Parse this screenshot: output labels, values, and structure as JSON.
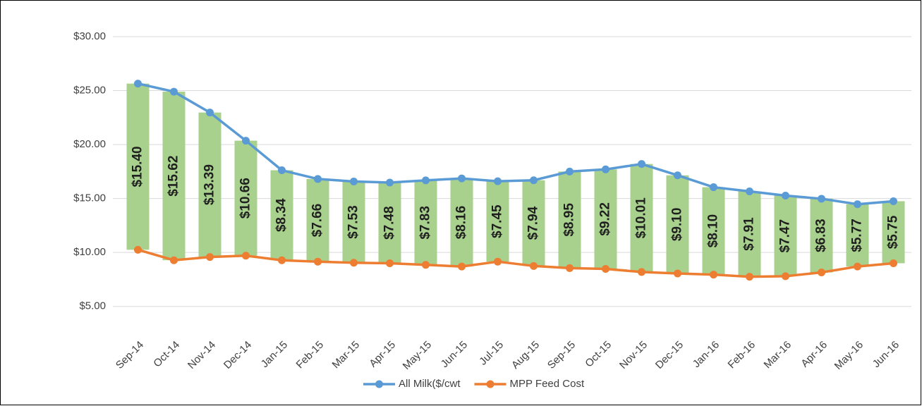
{
  "chart_data": {
    "type": "line",
    "categories": [
      "Sep-14",
      "Oct-14",
      "Nov-14",
      "Dec-14",
      "Jan-15",
      "Feb-15",
      "Mar-15",
      "Apr-15",
      "May-15",
      "Jun-15",
      "Jul-15",
      "Aug-15",
      "Sep-15",
      "Oct-15",
      "Nov-15",
      "Dec-15",
      "Jan-16",
      "Feb-16",
      "Mar-16",
      "Apr-16",
      "May-16",
      "Jun-16"
    ],
    "series": [
      {
        "name": "All Milk($/cwt",
        "color": "#5b9bd5",
        "values": [
          25.65,
          24.9,
          22.97,
          20.36,
          17.62,
          16.81,
          16.58,
          16.48,
          16.68,
          16.86,
          16.6,
          16.69,
          17.5,
          17.7,
          18.2,
          17.15,
          16.05,
          15.66,
          15.27,
          14.98,
          14.47,
          14.75
        ]
      },
      {
        "name": "MPP Feed Cost",
        "color": "#ed7d31",
        "values": [
          10.25,
          9.28,
          9.58,
          9.7,
          9.28,
          9.15,
          9.05,
          9.0,
          8.85,
          8.7,
          9.15,
          8.75,
          8.55,
          8.48,
          8.19,
          8.05,
          7.95,
          7.75,
          7.8,
          8.15,
          8.7,
          9.0
        ]
      }
    ],
    "margin": {
      "color": "#a9d18e",
      "values": [
        15.4,
        15.62,
        13.39,
        10.66,
        8.34,
        7.66,
        7.53,
        7.48,
        7.83,
        8.16,
        7.45,
        7.94,
        8.95,
        9.22,
        10.01,
        9.1,
        8.1,
        7.91,
        7.47,
        6.83,
        5.77,
        5.75
      ],
      "value_labels": [
        "$15.40",
        "$15.62",
        "$13.39",
        "$10.66",
        "$8.34",
        "$7.66",
        "$7.53",
        "$7.48",
        "$7.83",
        "$8.16",
        "$7.45",
        "$7.94",
        "$8.95",
        "$9.22",
        "$10.01",
        "$9.10",
        "$8.10",
        "$7.91",
        "$7.47",
        "$6.83",
        "$5.77",
        "$5.75"
      ]
    },
    "ylim": [
      2.5,
      30
    ],
    "yticks": [
      {
        "value": 5,
        "label": "$5.00"
      },
      {
        "value": 10,
        "label": "$10.00"
      },
      {
        "value": 15,
        "label": "$15.00"
      },
      {
        "value": 20,
        "label": "$20.00"
      },
      {
        "value": 25,
        "label": "$25.00"
      },
      {
        "value": 30,
        "label": "$30.00"
      }
    ],
    "grid": true,
    "legend": "bottom"
  }
}
